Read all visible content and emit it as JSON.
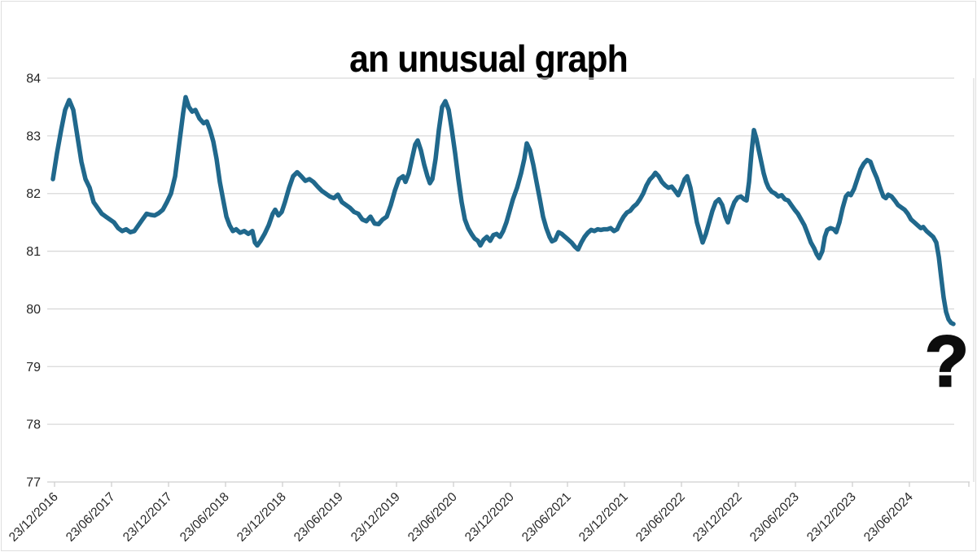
{
  "title": "an unusual graph",
  "annotation": {
    "question_mark": "?"
  },
  "colors": {
    "line": "#20688c",
    "gridline": "#d9d9d9",
    "axis_line": "#cfcfcf",
    "axis_text": "#262626",
    "title_text": "#000000",
    "border": "#dedede"
  },
  "chart_data": {
    "type": "line",
    "title": "an unusual graph",
    "xlabel": "",
    "ylabel": "",
    "grid": "horizontal",
    "legend": "none",
    "ylim": [
      77,
      84
    ],
    "y_ticks": [
      84,
      83,
      82,
      81,
      80,
      79,
      78,
      77
    ],
    "x_tick_interval_months": 6,
    "x_tick_labels": [
      "23/12/2016",
      "23/06/2017",
      "23/12/2017",
      "23/06/2018",
      "23/12/2018",
      "23/06/2019",
      "23/12/2019",
      "23/06/2020",
      "23/12/2020",
      "23/06/2021",
      "23/12/2021",
      "23/06/2022",
      "23/12/2022",
      "23/06/2023",
      "23/12/2023",
      "23/06/2024"
    ],
    "x_unit": "months since 23/12/2016",
    "annotations": [
      {
        "text": "?",
        "x_month": 93.9,
        "y_value": 79.0
      }
    ],
    "series": [
      {
        "name": "",
        "points": [
          [
            -0.17,
            82.25
          ],
          [
            0.26,
            82.7
          ],
          [
            0.69,
            83.1
          ],
          [
            1.11,
            83.45
          ],
          [
            1.54,
            83.62
          ],
          [
            1.97,
            83.45
          ],
          [
            2.4,
            83.0
          ],
          [
            2.83,
            82.55
          ],
          [
            3.26,
            82.25
          ],
          [
            3.69,
            82.1
          ],
          [
            4.11,
            81.85
          ],
          [
            4.54,
            81.75
          ],
          [
            4.97,
            81.65
          ],
          [
            5.4,
            81.6
          ],
          [
            5.83,
            81.55
          ],
          [
            6.26,
            81.5
          ],
          [
            6.69,
            81.4
          ],
          [
            7.11,
            81.35
          ],
          [
            7.54,
            81.38
          ],
          [
            7.97,
            81.33
          ],
          [
            8.4,
            81.35
          ],
          [
            8.83,
            81.45
          ],
          [
            9.26,
            81.55
          ],
          [
            9.69,
            81.65
          ],
          [
            10.11,
            81.63
          ],
          [
            10.54,
            81.62
          ],
          [
            10.97,
            81.66
          ],
          [
            11.4,
            81.72
          ],
          [
            11.83,
            81.85
          ],
          [
            12.26,
            82.0
          ],
          [
            12.69,
            82.3
          ],
          [
            13.11,
            82.85
          ],
          [
            13.54,
            83.4
          ],
          [
            13.8,
            83.67
          ],
          [
            14.14,
            83.5
          ],
          [
            14.49,
            83.42
          ],
          [
            14.83,
            83.45
          ],
          [
            15.26,
            83.3
          ],
          [
            15.69,
            83.22
          ],
          [
            16.03,
            83.25
          ],
          [
            16.37,
            83.1
          ],
          [
            16.71,
            82.9
          ],
          [
            17.06,
            82.6
          ],
          [
            17.4,
            82.2
          ],
          [
            17.74,
            81.9
          ],
          [
            18.09,
            81.6
          ],
          [
            18.43,
            81.45
          ],
          [
            18.77,
            81.35
          ],
          [
            19.11,
            81.38
          ],
          [
            19.54,
            81.32
          ],
          [
            19.97,
            81.35
          ],
          [
            20.4,
            81.3
          ],
          [
            20.83,
            81.35
          ],
          [
            21.09,
            81.15
          ],
          [
            21.34,
            81.1
          ],
          [
            21.69,
            81.18
          ],
          [
            22.11,
            81.3
          ],
          [
            22.54,
            81.45
          ],
          [
            22.97,
            81.65
          ],
          [
            23.23,
            81.72
          ],
          [
            23.57,
            81.62
          ],
          [
            23.91,
            81.68
          ],
          [
            24.26,
            81.85
          ],
          [
            24.69,
            82.1
          ],
          [
            25.11,
            82.3
          ],
          [
            25.54,
            82.37
          ],
          [
            25.97,
            82.3
          ],
          [
            26.4,
            82.22
          ],
          [
            26.83,
            82.25
          ],
          [
            27.26,
            82.2
          ],
          [
            27.69,
            82.12
          ],
          [
            28.11,
            82.05
          ],
          [
            28.54,
            82.0
          ],
          [
            28.97,
            81.95
          ],
          [
            29.4,
            81.92
          ],
          [
            29.83,
            81.98
          ],
          [
            30.26,
            81.85
          ],
          [
            30.69,
            81.8
          ],
          [
            31.11,
            81.75
          ],
          [
            31.54,
            81.68
          ],
          [
            31.97,
            81.65
          ],
          [
            32.4,
            81.55
          ],
          [
            32.83,
            81.52
          ],
          [
            33.26,
            81.6
          ],
          [
            33.69,
            81.48
          ],
          [
            34.11,
            81.47
          ],
          [
            34.54,
            81.55
          ],
          [
            34.97,
            81.6
          ],
          [
            35.4,
            81.8
          ],
          [
            35.83,
            82.05
          ],
          [
            36.26,
            82.25
          ],
          [
            36.69,
            82.3
          ],
          [
            36.94,
            82.2
          ],
          [
            37.29,
            82.35
          ],
          [
            37.63,
            82.6
          ],
          [
            37.97,
            82.85
          ],
          [
            38.23,
            82.92
          ],
          [
            38.57,
            82.75
          ],
          [
            38.91,
            82.5
          ],
          [
            39.26,
            82.3
          ],
          [
            39.51,
            82.18
          ],
          [
            39.77,
            82.25
          ],
          [
            40.11,
            82.6
          ],
          [
            40.46,
            83.1
          ],
          [
            40.8,
            83.5
          ],
          [
            41.14,
            83.6
          ],
          [
            41.49,
            83.45
          ],
          [
            41.83,
            83.1
          ],
          [
            42.17,
            82.7
          ],
          [
            42.51,
            82.25
          ],
          [
            42.86,
            81.85
          ],
          [
            43.2,
            81.55
          ],
          [
            43.54,
            81.4
          ],
          [
            43.89,
            81.3
          ],
          [
            44.23,
            81.22
          ],
          [
            44.57,
            81.18
          ],
          [
            44.83,
            81.1
          ],
          [
            45.17,
            81.2
          ],
          [
            45.51,
            81.25
          ],
          [
            45.86,
            81.18
          ],
          [
            46.2,
            81.28
          ],
          [
            46.54,
            81.3
          ],
          [
            46.89,
            81.25
          ],
          [
            47.23,
            81.35
          ],
          [
            47.57,
            81.5
          ],
          [
            47.91,
            81.7
          ],
          [
            48.26,
            81.9
          ],
          [
            48.69,
            82.1
          ],
          [
            49.11,
            82.35
          ],
          [
            49.46,
            82.6
          ],
          [
            49.71,
            82.87
          ],
          [
            50.06,
            82.75
          ],
          [
            50.4,
            82.5
          ],
          [
            50.74,
            82.2
          ],
          [
            51.09,
            81.9
          ],
          [
            51.43,
            81.6
          ],
          [
            51.77,
            81.4
          ],
          [
            52.11,
            81.25
          ],
          [
            52.37,
            81.17
          ],
          [
            52.71,
            81.2
          ],
          [
            53.06,
            81.33
          ],
          [
            53.4,
            81.3
          ],
          [
            53.74,
            81.25
          ],
          [
            54.09,
            81.2
          ],
          [
            54.43,
            81.15
          ],
          [
            54.77,
            81.08
          ],
          [
            55.11,
            81.03
          ],
          [
            55.46,
            81.15
          ],
          [
            55.8,
            81.25
          ],
          [
            56.14,
            81.32
          ],
          [
            56.49,
            81.37
          ],
          [
            56.83,
            81.35
          ],
          [
            57.17,
            81.38
          ],
          [
            57.51,
            81.37
          ],
          [
            57.86,
            81.38
          ],
          [
            58.2,
            81.38
          ],
          [
            58.54,
            81.4
          ],
          [
            58.89,
            81.35
          ],
          [
            59.23,
            81.38
          ],
          [
            59.57,
            81.5
          ],
          [
            59.91,
            81.6
          ],
          [
            60.26,
            81.67
          ],
          [
            60.6,
            81.7
          ],
          [
            60.94,
            81.77
          ],
          [
            61.29,
            81.82
          ],
          [
            61.63,
            81.9
          ],
          [
            61.97,
            82.0
          ],
          [
            62.31,
            82.14
          ],
          [
            62.66,
            82.24
          ],
          [
            63.0,
            82.3
          ],
          [
            63.26,
            82.36
          ],
          [
            63.6,
            82.3
          ],
          [
            63.94,
            82.2
          ],
          [
            64.29,
            82.14
          ],
          [
            64.63,
            82.1
          ],
          [
            64.97,
            82.12
          ],
          [
            65.31,
            82.05
          ],
          [
            65.66,
            81.97
          ],
          [
            66.0,
            82.1
          ],
          [
            66.34,
            82.25
          ],
          [
            66.6,
            82.3
          ],
          [
            66.94,
            82.1
          ],
          [
            67.29,
            81.8
          ],
          [
            67.63,
            81.5
          ],
          [
            67.97,
            81.3
          ],
          [
            68.23,
            81.15
          ],
          [
            68.57,
            81.3
          ],
          [
            68.91,
            81.5
          ],
          [
            69.26,
            81.7
          ],
          [
            69.6,
            81.85
          ],
          [
            69.94,
            81.9
          ],
          [
            70.29,
            81.8
          ],
          [
            70.63,
            81.6
          ],
          [
            70.89,
            81.5
          ],
          [
            71.23,
            81.7
          ],
          [
            71.57,
            81.85
          ],
          [
            71.91,
            81.93
          ],
          [
            72.26,
            81.95
          ],
          [
            72.6,
            81.9
          ],
          [
            72.86,
            81.88
          ],
          [
            73.11,
            82.2
          ],
          [
            73.37,
            82.7
          ],
          [
            73.63,
            83.1
          ],
          [
            73.89,
            82.95
          ],
          [
            74.14,
            82.75
          ],
          [
            74.4,
            82.55
          ],
          [
            74.66,
            82.35
          ],
          [
            74.91,
            82.2
          ],
          [
            75.17,
            82.1
          ],
          [
            75.51,
            82.03
          ],
          [
            75.86,
            82.0
          ],
          [
            76.2,
            81.95
          ],
          [
            76.54,
            81.97
          ],
          [
            76.89,
            81.9
          ],
          [
            77.23,
            81.88
          ],
          [
            77.57,
            81.8
          ],
          [
            77.91,
            81.72
          ],
          [
            78.26,
            81.65
          ],
          [
            78.6,
            81.55
          ],
          [
            78.94,
            81.45
          ],
          [
            79.29,
            81.3
          ],
          [
            79.63,
            81.15
          ],
          [
            79.97,
            81.05
          ],
          [
            80.23,
            80.95
          ],
          [
            80.49,
            80.88
          ],
          [
            80.83,
            81.0
          ],
          [
            81.09,
            81.25
          ],
          [
            81.34,
            81.37
          ],
          [
            81.69,
            81.4
          ],
          [
            82.03,
            81.38
          ],
          [
            82.29,
            81.33
          ],
          [
            82.63,
            81.5
          ],
          [
            82.97,
            81.75
          ],
          [
            83.31,
            81.95
          ],
          [
            83.57,
            82.0
          ],
          [
            83.83,
            81.97
          ],
          [
            84.17,
            82.08
          ],
          [
            84.51,
            82.25
          ],
          [
            84.86,
            82.42
          ],
          [
            85.2,
            82.52
          ],
          [
            85.54,
            82.58
          ],
          [
            85.89,
            82.55
          ],
          [
            86.23,
            82.4
          ],
          [
            86.57,
            82.27
          ],
          [
            86.91,
            82.1
          ],
          [
            87.26,
            81.95
          ],
          [
            87.51,
            81.92
          ],
          [
            87.77,
            81.98
          ],
          [
            88.11,
            81.95
          ],
          [
            88.46,
            81.88
          ],
          [
            88.8,
            81.8
          ],
          [
            89.14,
            81.76
          ],
          [
            89.49,
            81.72
          ],
          [
            89.83,
            81.65
          ],
          [
            90.17,
            81.55
          ],
          [
            90.51,
            81.5
          ],
          [
            90.86,
            81.45
          ],
          [
            91.2,
            81.4
          ],
          [
            91.46,
            81.42
          ],
          [
            91.8,
            81.35
          ],
          [
            92.14,
            81.3
          ],
          [
            92.49,
            81.25
          ],
          [
            92.83,
            81.15
          ],
          [
            93.09,
            80.9
          ],
          [
            93.34,
            80.55
          ],
          [
            93.6,
            80.2
          ],
          [
            93.86,
            79.95
          ],
          [
            94.11,
            79.82
          ],
          [
            94.37,
            79.76
          ],
          [
            94.63,
            79.74
          ]
        ]
      }
    ]
  }
}
